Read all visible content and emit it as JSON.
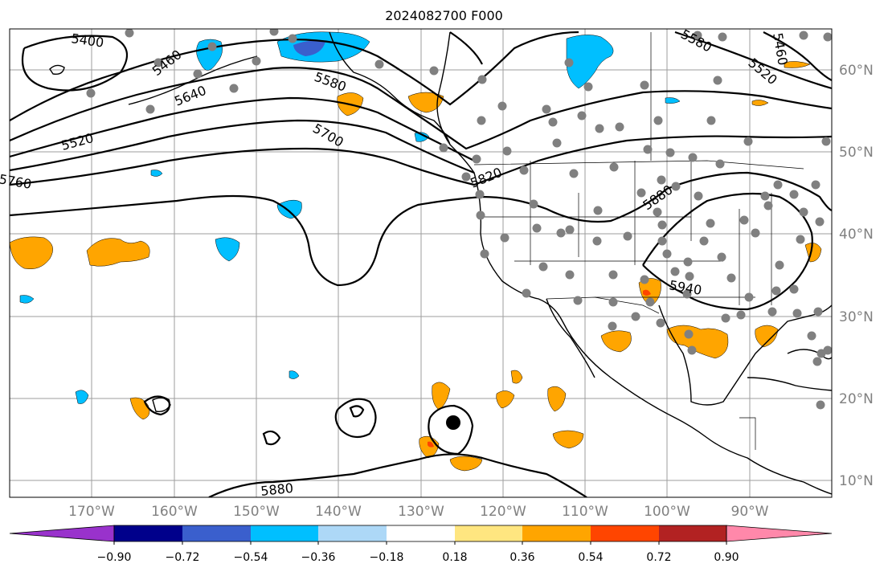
{
  "title": "2024082700 F000",
  "colors": {
    "contour": "#000000",
    "grid": "#9e9e9e",
    "station": "#808080",
    "storm_center": "#000000",
    "coast": "#000000"
  },
  "map": {
    "lon_range": [
      -180,
      -80
    ],
    "lat_range": [
      8,
      65
    ],
    "latitude_labels": [
      "60°N",
      "50°N",
      "40°N",
      "30°N",
      "20°N",
      "10°N"
    ],
    "longitude_labels": [
      "170°W",
      "160°W",
      "150°W",
      "140°W",
      "130°W",
      "120°W",
      "110°W",
      "100°W",
      "90°W"
    ],
    "contour_labels": [
      "5400",
      "5460",
      "5520",
      "5580",
      "5640",
      "5700",
      "5760",
      "5820",
      "5880",
      "5940",
      "5580",
      "5520",
      "5460",
      "5880"
    ],
    "colorbar": {
      "ticks": [
        "−0.90",
        "−0.72",
        "−0.54",
        "−0.36",
        "−0.18",
        "0.18",
        "0.36",
        "0.54",
        "0.72",
        "0.90"
      ],
      "bins": [
        {
          "color": "#9932cc"
        },
        {
          "color": "#00008b"
        },
        {
          "color": "#3a5fcd"
        },
        {
          "color": "#00bfff"
        },
        {
          "color": "#add8f7"
        },
        {
          "color": "#ffffff"
        },
        {
          "color": "#ffe680"
        },
        {
          "color": "#ffa500"
        },
        {
          "color": "#ff4500"
        },
        {
          "color": "#b22222"
        },
        {
          "color": "#ff88aa"
        }
      ]
    }
  }
}
